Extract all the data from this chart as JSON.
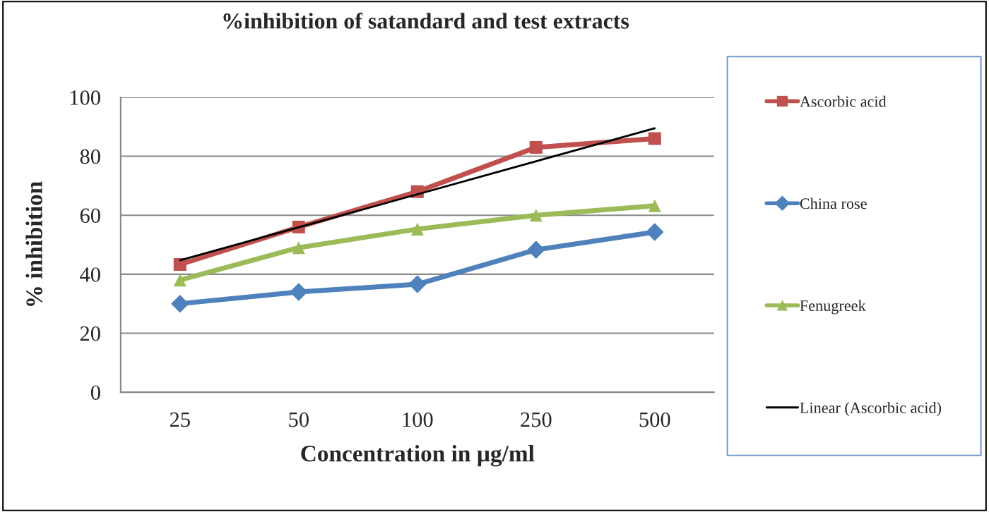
{
  "chart_data": {
    "type": "line",
    "title": "%inhibition of satandard and test extracts",
    "xlabel": "Concentration in µg/ml",
    "ylabel": "% inhibition",
    "categories": [
      "25",
      "50",
      "100",
      "250",
      "500"
    ],
    "series": [
      {
        "name": "Ascorbic acid",
        "color": "#c0504d",
        "marker": "square",
        "values": [
          43.3,
          56,
          68,
          83,
          86
        ]
      },
      {
        "name": "China rose",
        "color": "#4f81bd",
        "marker": "diamond",
        "values": [
          30,
          34,
          36.6,
          48.3,
          54.3
        ]
      },
      {
        "name": "Fenugreek",
        "color": "#9bbb59",
        "marker": "triangle",
        "values": [
          38,
          49,
          55.3,
          60,
          63.2
        ]
      },
      {
        "name": "Linear (Ascorbic acid)",
        "type": "line",
        "color": "#000000",
        "marker": "none",
        "x": [
          "25",
          "500"
        ],
        "values": [
          44.7,
          89.5
        ]
      }
    ],
    "ylim": [
      0,
      100
    ],
    "yticks": [
      0,
      20,
      40,
      60,
      80,
      100
    ],
    "grid": "y",
    "legend": "right"
  }
}
